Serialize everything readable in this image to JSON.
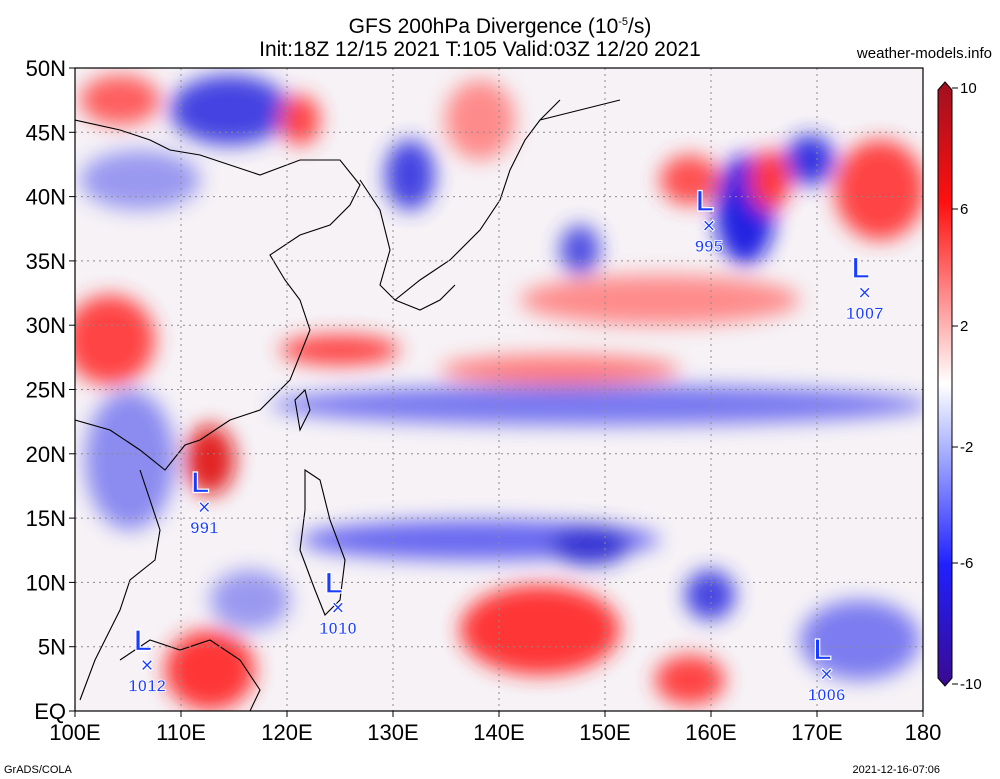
{
  "title_line1": "GFS 200hPa Divergence (10",
  "title_exp": "-5",
  "title_unit": "/s)",
  "title_line2": "Init:18Z 12/15 2021 T:105 Valid:03Z 12/20 2021",
  "site": "weather-models.info",
  "footer_left": "GrADS/COLA",
  "footer_right": "2021-12-16-07:06",
  "map": {
    "lon_range": [
      100,
      180
    ],
    "lat_range": [
      0,
      50
    ],
    "lon_labels": [
      "100E",
      "110E",
      "120E",
      "130E",
      "140E",
      "150E",
      "160E",
      "170E",
      "180"
    ],
    "lat_labels": [
      "EQ",
      "5N",
      "10N",
      "15N",
      "20N",
      "25N",
      "30N",
      "35N",
      "40N",
      "45N",
      "50N"
    ],
    "lows": [
      {
        "lon": 112.2,
        "lat": 15.9,
        "pressure": "991"
      },
      {
        "lon": 106.8,
        "lat": 3.6,
        "pressure": "1012"
      },
      {
        "lon": 124.8,
        "lat": 8.1,
        "pressure": "1010"
      },
      {
        "lon": 159.8,
        "lat": 37.8,
        "pressure": "995"
      },
      {
        "lon": 174.5,
        "lat": 32.6,
        "pressure": "1007"
      },
      {
        "lon": 170.9,
        "lat": 2.9,
        "pressure": "1006"
      }
    ],
    "colorbar_labels": [
      "10",
      "6",
      "2",
      "-2",
      "-6",
      "-10"
    ],
    "colors": {
      "positive": "#e8000b",
      "negative": "#1a1aff",
      "neutral": "#ffffff"
    }
  }
}
